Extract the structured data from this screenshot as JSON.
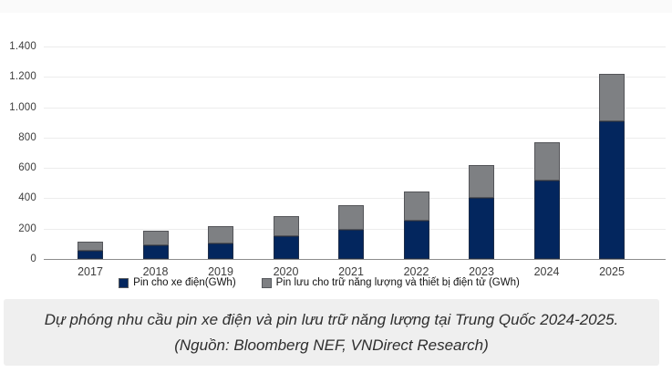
{
  "caption": {
    "line1": "Dự phóng nhu cầu pin xe điện và pin lưu trữ năng lượng tại Trung Quốc 2024-2025.",
    "line2": "(Nguồn: Bloomberg NEF, VNDirect Research)"
  },
  "colors": {
    "ev_series": "#03265e",
    "storage_series": "#7e8083",
    "gridline": "#ececec",
    "axis_line": "#8c8c8c",
    "caption_background": "#efefef"
  },
  "chart_data": {
    "type": "bar",
    "stacked": true,
    "title": "",
    "xlabel": "",
    "ylabel": "",
    "categories": [
      "2017",
      "2018",
      "2019",
      "2020",
      "2021",
      "2022",
      "2023",
      "2024",
      "2025"
    ],
    "series": [
      {
        "name": "Pin cho xe điện(GWh)",
        "color": "#03265e",
        "values": [
          55,
          90,
          105,
          150,
          195,
          255,
          400,
          515,
          910
        ]
      },
      {
        "name": "Pin lưu cho trữ năng lượng và thiết bị điện tử (GWh)",
        "color": "#7e8083",
        "values": [
          60,
          95,
          110,
          130,
          160,
          190,
          220,
          255,
          310
        ]
      }
    ],
    "totals": [
      115,
      185,
      215,
      280,
      355,
      445,
      620,
      770,
      1220
    ],
    "ylim": [
      0,
      1400
    ],
    "ytick_step": 200,
    "ytick_labels": [
      "0",
      "200",
      "400",
      "600",
      "800",
      "1.000",
      "1.200",
      "1.400"
    ],
    "grid": true,
    "legend_position": "bottom"
  }
}
